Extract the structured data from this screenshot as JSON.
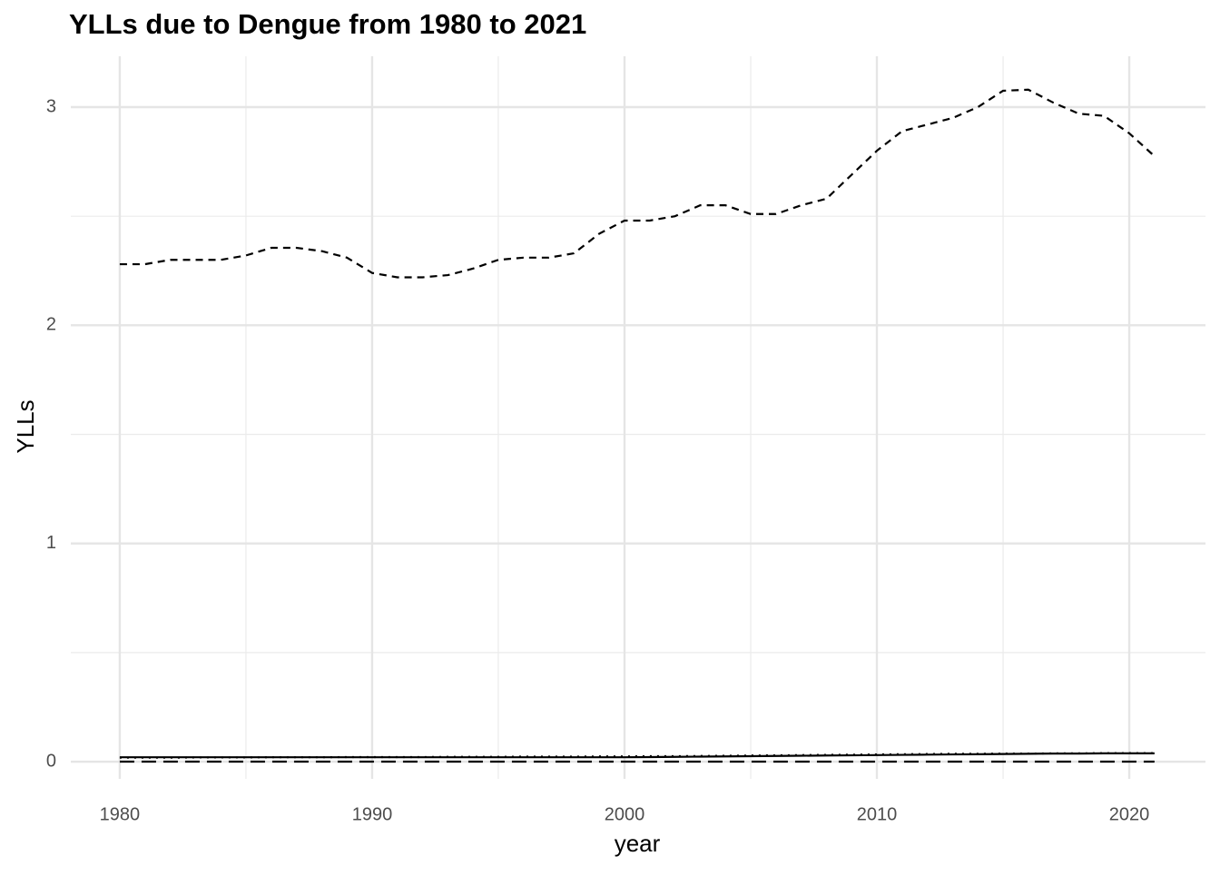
{
  "chart_data": {
    "type": "line",
    "title": "YLLs due to Dengue from 1980 to 2021",
    "x_label": "year",
    "y_label": "YLLs",
    "x": [
      1980,
      1981,
      1982,
      1983,
      1984,
      1985,
      1986,
      1987,
      1988,
      1989,
      1990,
      1991,
      1992,
      1993,
      1994,
      1995,
      1996,
      1997,
      1998,
      1999,
      2000,
      2001,
      2002,
      2003,
      2004,
      2005,
      2006,
      2007,
      2008,
      2009,
      2010,
      2011,
      2012,
      2013,
      2014,
      2015,
      2016,
      2017,
      2018,
      2019,
      2020,
      2021
    ],
    "series": [
      {
        "color": "#000000",
        "linestyle": "dashed",
        "values": [
          2.28,
          2.28,
          2.3,
          2.3,
          2.3,
          2.32,
          2.355,
          2.355,
          2.34,
          2.31,
          2.24,
          2.22,
          2.22,
          2.23,
          2.26,
          2.3,
          2.31,
          2.31,
          2.33,
          2.42,
          2.48,
          2.48,
          2.5,
          2.55,
          2.55,
          2.51,
          2.51,
          2.55,
          2.58,
          2.69,
          2.8,
          2.89,
          2.92,
          2.95,
          3.0,
          3.075,
          3.08,
          3.02,
          2.97,
          2.96,
          2.88,
          2.775
        ]
      },
      {
        "color": "#000000",
        "linestyle": "solid",
        "values": [
          0.02,
          0.02,
          0.02,
          0.02,
          0.02,
          0.02,
          0.02,
          0.02,
          0.02,
          0.02,
          0.02,
          0.02,
          0.02,
          0.02,
          0.02,
          0.02,
          0.02,
          0.02,
          0.02,
          0.02,
          0.02,
          0.021,
          0.022,
          0.023,
          0.024,
          0.025,
          0.026,
          0.027,
          0.028,
          0.029,
          0.03,
          0.031,
          0.032,
          0.033,
          0.034,
          0.035,
          0.036,
          0.037,
          0.037,
          0.038,
          0.038,
          0.038
        ]
      },
      {
        "color": "#000000",
        "linestyle": "dotted",
        "values": [
          0.018,
          0.018,
          0.018,
          0.019,
          0.019,
          0.019,
          0.02,
          0.02,
          0.02,
          0.021,
          0.021,
          0.021,
          0.021,
          0.022,
          0.022,
          0.022,
          0.023,
          0.023,
          0.023,
          0.024,
          0.024,
          0.025,
          0.025,
          0.026,
          0.027,
          0.028,
          0.029,
          0.03,
          0.031,
          0.032,
          0.033,
          0.034,
          0.035,
          0.036,
          0.036,
          0.037,
          0.037,
          0.038,
          0.038,
          0.039,
          0.039,
          0.039
        ]
      },
      {
        "color": "#000000",
        "linestyle": "longdash",
        "values": [
          0,
          0,
          0,
          0,
          0,
          0,
          0,
          0,
          0,
          0,
          0,
          0,
          0,
          0,
          0,
          0,
          0,
          0,
          0,
          0,
          0,
          0,
          0,
          0,
          0,
          0,
          0,
          0,
          0,
          0,
          0,
          0,
          0,
          0,
          0,
          0,
          0,
          0,
          0,
          0,
          0,
          0
        ]
      }
    ],
    "xlim": [
      1978.06,
      2023.02
    ],
    "ylim": [
      -0.079,
      3.233
    ],
    "xticks": [
      1980,
      1990,
      2000,
      2010,
      2020
    ],
    "yticks": [
      0,
      1,
      2,
      3
    ],
    "grid": true
  }
}
